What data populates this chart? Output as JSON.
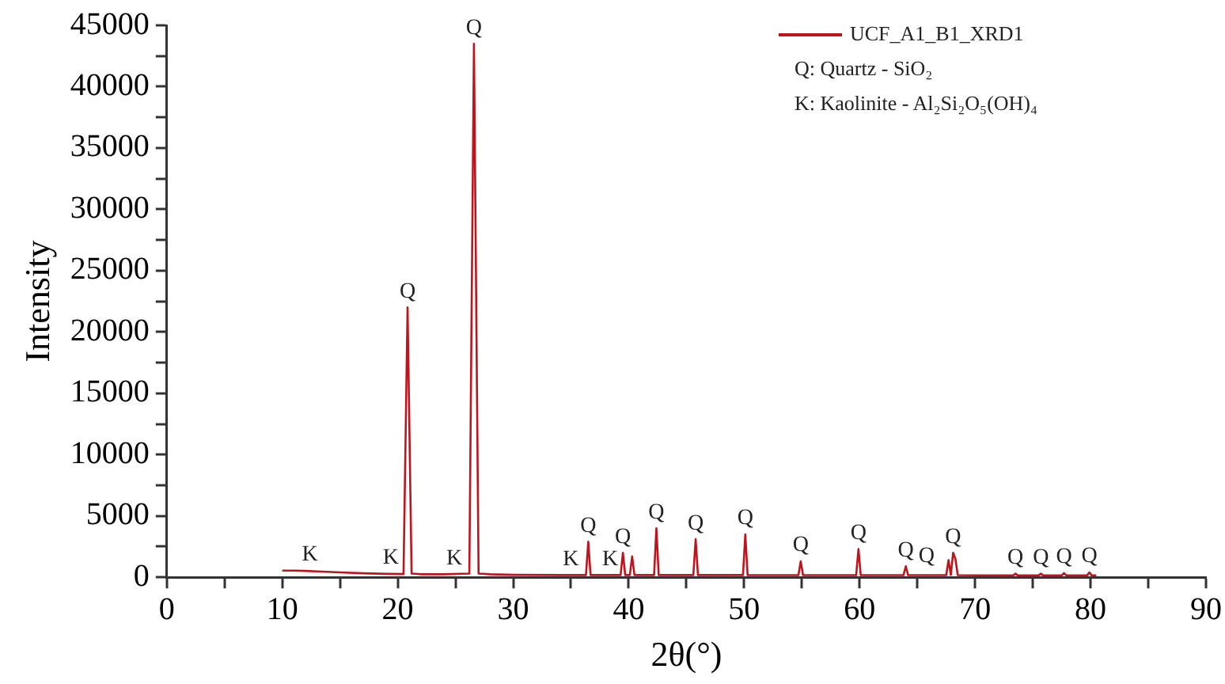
{
  "chart_data": {
    "type": "line",
    "xlabel": "2θ(°)",
    "ylabel": "Intensity",
    "x": [
      10,
      11,
      12,
      13,
      15,
      17,
      19,
      20.5,
      20.85,
      21.2,
      22,
      24,
      26.2,
      26.6,
      27.0,
      28,
      30,
      34,
      36.3,
      36.5,
      36.7,
      39.3,
      39.5,
      39.7,
      40.1,
      40.3,
      40.5,
      42.2,
      42.4,
      42.6,
      45.6,
      45.8,
      46.0,
      49.9,
      50.1,
      50.3,
      54.7,
      54.9,
      55.1,
      59.7,
      59.9,
      60.1,
      63.8,
      64.0,
      64.2,
      67.5,
      67.7,
      67.9,
      68.1,
      68.3,
      68.5,
      73.3,
      73.5,
      73.7,
      75.5,
      75.7,
      75.9,
      77.5,
      77.7,
      77.9,
      79.7,
      79.9,
      80.1,
      80.5
    ],
    "series": [
      {
        "name": "UCF_A1_B1_XRD1",
        "color": "#c0141c",
        "values": [
          550,
          550,
          520,
          480,
          400,
          330,
          280,
          260,
          22000,
          300,
          250,
          250,
          300,
          43500,
          300,
          250,
          200,
          180,
          180,
          2900,
          180,
          180,
          2000,
          180,
          180,
          1700,
          180,
          180,
          4000,
          180,
          180,
          3100,
          180,
          180,
          3500,
          180,
          170,
          1300,
          170,
          170,
          2300,
          170,
          170,
          900,
          170,
          170,
          1400,
          200,
          2000,
          1500,
          170,
          150,
          300,
          150,
          150,
          300,
          150,
          150,
          350,
          150,
          150,
          400,
          150,
          150
        ]
      }
    ],
    "xlim": [
      0,
      90
    ],
    "ylim": [
      0,
      45000
    ],
    "xticks": [
      0,
      {
        "value": 5,
        "label": null
      },
      10,
      {
        "value": 15,
        "label": null
      },
      20,
      {
        "value": 25,
        "label": null
      },
      30,
      {
        "value": 35,
        "label": null
      },
      40,
      {
        "value": 45,
        "label": null
      },
      50,
      {
        "value": 55,
        "label": null
      },
      60,
      {
        "value": 65,
        "label": null
      },
      70,
      {
        "value": 75,
        "label": null
      },
      80,
      {
        "value": 85,
        "label": null
      },
      90
    ],
    "yticks": [
      0,
      {
        "value": 2500,
        "label": null
      },
      5000,
      {
        "value": 7500,
        "label": null
      },
      10000,
      {
        "value": 12500,
        "label": null
      },
      15000,
      {
        "value": 17500,
        "label": null
      },
      20000,
      {
        "value": 22500,
        "label": null
      },
      25000,
      {
        "value": 27500,
        "label": null
      },
      30000,
      {
        "value": 32500,
        "label": null
      },
      35000,
      {
        "value": 37500,
        "label": null
      },
      40000,
      {
        "value": 42500,
        "label": null
      },
      45000
    ],
    "grid": false,
    "legend": "top right",
    "marker": "none",
    "line_style": "solid",
    "annotations": [
      "Q: Quartz - SiO₂",
      "K: Kaolinite - Al₂Si₂O₅(OH)₄",
      {
        "text": "Q",
        "x": 20.85,
        "y": 22000
      },
      {
        "text": "Q",
        "x": 26.6,
        "y": 43500
      },
      {
        "text": "K",
        "x": 12.4,
        "y": 520
      },
      {
        "text": "K",
        "x": 19.4,
        "y": 270
      },
      {
        "text": "K",
        "x": 24.9,
        "y": 260
      },
      {
        "text": "K",
        "x": 35.0,
        "y": 180
      },
      {
        "text": "K",
        "x": 38.4,
        "y": 180
      },
      {
        "text": "Q",
        "x": 36.5,
        "y": 2900
      },
      {
        "text": "Q",
        "x": 39.5,
        "y": 2000
      },
      {
        "text": "Q",
        "x": 42.4,
        "y": 4000
      },
      {
        "text": "Q",
        "x": 45.8,
        "y": 3100
      },
      {
        "text": "Q",
        "x": 50.1,
        "y": 3500
      },
      {
        "text": "Q",
        "x": 54.9,
        "y": 1300
      },
      {
        "text": "Q",
        "x": 59.9,
        "y": 2300
      },
      {
        "text": "Q",
        "x": 64.0,
        "y": 900
      },
      {
        "text": "Q",
        "x": 65.8,
        "y": 400
      },
      {
        "text": "Q",
        "x": 68.1,
        "y": 2000
      },
      {
        "text": "Q",
        "x": 73.5,
        "y": 300
      },
      {
        "text": "Q",
        "x": 75.7,
        "y": 300
      },
      {
        "text": "Q",
        "x": 77.7,
        "y": 350
      },
      {
        "text": "Q",
        "x": 79.9,
        "y": 400
      }
    ]
  }
}
